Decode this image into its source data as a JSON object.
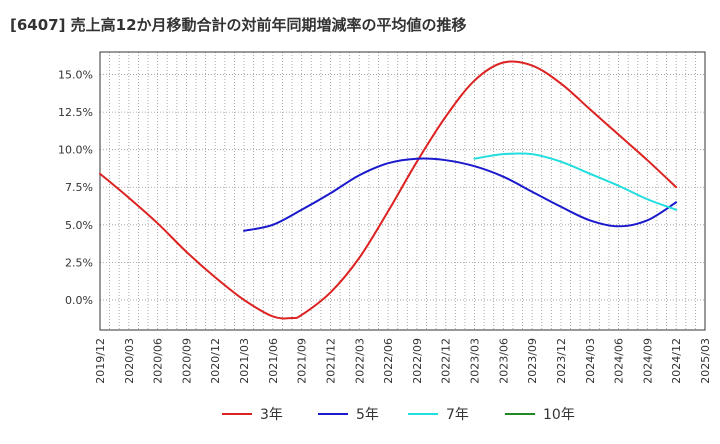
{
  "chart_data": {
    "type": "line",
    "title": "[6407]  売上高12か月移動合計の対前年同期増減率の平均値の推移",
    "xlabel": "",
    "ylabel": "",
    "ylim": [
      -2.0,
      16.5
    ],
    "y_ticks": [
      0.0,
      2.5,
      5.0,
      7.5,
      10.0,
      12.5,
      15.0
    ],
    "y_tick_labels": [
      "0.0%",
      "2.5%",
      "5.0%",
      "7.5%",
      "10.0%",
      "12.5%",
      "15.0%"
    ],
    "x_tick_labels": [
      "2019/12",
      "2020/03",
      "2020/06",
      "2020/09",
      "2020/12",
      "2021/03",
      "2021/06",
      "2021/09",
      "2021/12",
      "2022/03",
      "2022/06",
      "2022/09",
      "2022/12",
      "2023/03",
      "2023/06",
      "2023/09",
      "2023/12",
      "2024/03",
      "2024/06",
      "2024/09",
      "2024/12",
      "2025/03"
    ],
    "grid": true,
    "legend_position": "bottom",
    "series": [
      {
        "name": "3年",
        "color": "#dd2222",
        "points": [
          [
            "2019/12",
            8.4
          ],
          [
            "2020/03",
            6.8
          ],
          [
            "2020/06",
            5.1
          ],
          [
            "2020/09",
            3.2
          ],
          [
            "2020/12",
            1.5
          ],
          [
            "2021/03",
            0.0
          ],
          [
            "2021/06",
            -1.1
          ],
          [
            "2021/08",
            -1.2
          ],
          [
            "2021/09",
            -1.0
          ],
          [
            "2021/12",
            0.5
          ],
          [
            "2022/03",
            2.8
          ],
          [
            "2022/06",
            5.9
          ],
          [
            "2022/09",
            9.2
          ],
          [
            "2022/12",
            12.2
          ],
          [
            "2023/03",
            14.6
          ],
          [
            "2023/06",
            15.8
          ],
          [
            "2023/09",
            15.6
          ],
          [
            "2023/12",
            14.4
          ],
          [
            "2024/03",
            12.7
          ],
          [
            "2024/06",
            11.0
          ],
          [
            "2024/09",
            9.3
          ],
          [
            "2024/12",
            7.5
          ]
        ]
      },
      {
        "name": "5年",
        "color": "#1a1acc",
        "points": [
          [
            "2021/03",
            4.6
          ],
          [
            "2021/06",
            5.0
          ],
          [
            "2021/09",
            6.0
          ],
          [
            "2021/12",
            7.1
          ],
          [
            "2022/03",
            8.3
          ],
          [
            "2022/06",
            9.1
          ],
          [
            "2022/09",
            9.4
          ],
          [
            "2022/12",
            9.3
          ],
          [
            "2023/03",
            8.9
          ],
          [
            "2023/06",
            8.2
          ],
          [
            "2023/09",
            7.2
          ],
          [
            "2023/12",
            6.2
          ],
          [
            "2024/03",
            5.3
          ],
          [
            "2024/06",
            4.9
          ],
          [
            "2024/09",
            5.3
          ],
          [
            "2024/12",
            6.5
          ]
        ]
      },
      {
        "name": "7年",
        "color": "#22dddd",
        "points": [
          [
            "2023/03",
            9.4
          ],
          [
            "2023/06",
            9.7
          ],
          [
            "2023/09",
            9.7
          ],
          [
            "2023/12",
            9.2
          ],
          [
            "2024/03",
            8.4
          ],
          [
            "2024/06",
            7.6
          ],
          [
            "2024/09",
            6.7
          ],
          [
            "2024/12",
            6.0
          ]
        ]
      },
      {
        "name": "10年",
        "color": "#228822",
        "points": []
      }
    ]
  }
}
